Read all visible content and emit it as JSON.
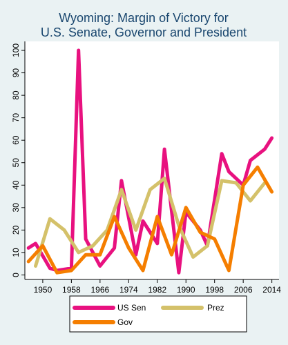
{
  "chart_data": {
    "type": "line",
    "title": [
      "Wyoming: Margin of Victory for",
      "U.S. Senate, Governor and President"
    ],
    "xlabel": "",
    "ylabel": "",
    "xlim": [
      1945,
      2016
    ],
    "ylim": [
      -2,
      104
    ],
    "xticks": [
      1950,
      1958,
      1966,
      1974,
      1982,
      1990,
      1998,
      2006,
      2014
    ],
    "yticks": [
      0,
      10,
      20,
      30,
      40,
      50,
      60,
      70,
      80,
      90,
      100
    ],
    "grid": false,
    "legend_position": "bottom",
    "series": [
      {
        "name": "US Sen",
        "color": "#e8117f",
        "x": [
          1946,
          1948,
          1952,
          1954,
          1958,
          1960,
          1962,
          1964,
          1966,
          1970,
          1972,
          1976,
          1978,
          1982,
          1984,
          1988,
          1990,
          1994,
          1996,
          2000,
          2002,
          2006,
          2008,
          2012,
          2014
        ],
        "y": [
          12,
          14,
          3,
          2,
          3,
          100,
          16,
          10,
          4,
          12,
          42,
          9,
          24,
          14,
          56,
          1,
          28,
          20,
          13,
          54,
          46,
          40,
          51,
          56,
          61
        ]
      },
      {
        "name": "Prez",
        "color": "#d4c16a",
        "x": [
          1948,
          1952,
          1956,
          1960,
          1964,
          1968,
          1972,
          1976,
          1980,
          1984,
          1988,
          1992,
          1996,
          2000,
          2004,
          2008,
          2012
        ],
        "y": [
          4,
          25,
          20,
          10,
          13,
          20,
          38,
          20,
          38,
          43,
          22,
          8,
          13,
          42,
          41,
          33,
          41
        ]
      },
      {
        "name": "Gov",
        "color": "#f57e00",
        "x": [
          1946,
          1950,
          1954,
          1958,
          1962,
          1966,
          1970,
          1974,
          1978,
          1982,
          1986,
          1990,
          1994,
          1998,
          2002,
          2006,
          2010,
          2014
        ],
        "y": [
          6,
          13,
          1,
          2,
          9,
          9,
          26,
          12,
          2,
          26,
          9,
          30,
          19,
          16,
          2,
          40,
          48,
          37
        ]
      }
    ]
  }
}
